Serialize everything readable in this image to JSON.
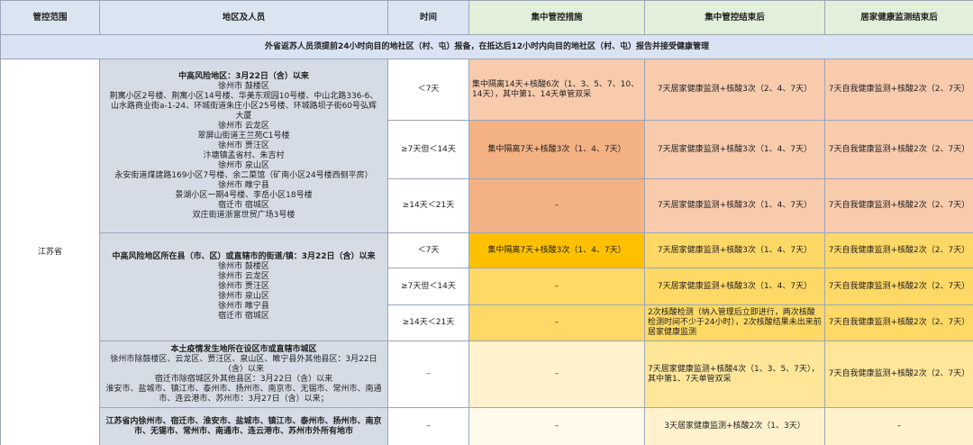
{
  "header": [
    "管控范围",
    "地区及人员",
    "时间",
    "集中管控措施",
    "集中管控结束后",
    "居家健康监测结束后"
  ],
  "notice": "外省返苏人员须提前24小时向目的地社区（村、屯）报备，在抵达后12小时内向目的地社区（村、屯）报告并接受健康管理",
  "region": "江苏省",
  "groups": [
    {
      "area": [
        "中高风险地区：3月22日（含）以来",
        "徐州市 鼓楼区",
        "荆寓小区2号楼、荆寓小区14号楼、华美东观园10号楼、中山北路336-6、",
        "山水路商业街a-1-24、环城街道朱庄小区25号楼、环城路坝子街60号弘辉",
        "大厦",
        "徐州市 云龙区",
        "翠屏山街道王兰苑C1号楼",
        "徐州市 贾汪区",
        "汴塘镇孟省村、朱吉村",
        "徐州市 泉山区",
        "永安街道煤建路169小区7号楼、余二菜馆（矿南小区24号楼西侧平房）",
        "徐州市 睢宁县",
        "景湖小区一期4号楼、李岳小区18号楼",
        "宿迁市 宿城区",
        "双庄街道浙富世贸广场3号楼"
      ],
      "rows": [
        {
          "time": "＜7天",
          "measure": "集中隔离14天+核酸6次（1、3、5、7、10、14天），其中第1、14天单管双采",
          "after": "7天居家健康监测+核酸3次（2、4、7天）",
          "home": "7天自我健康监测+核酸2次（2、7天）"
        },
        {
          "time": "≥7天但＜14天",
          "measure": "集中隔离7天+核酸3次（1、4、7天）",
          "after": "7天居家健康监测+核酸3次（1、4、7天）",
          "home": "7天自我健康监测+核酸2次（2、7天）"
        },
        {
          "time": "≥14天＜21天",
          "measure": "–",
          "after": "7天居家健康监测+核酸3次（1、4、7天）",
          "home": "7天自我健康监测+核酸2次（2、7天）"
        }
      ]
    },
    {
      "area": [
        "中高风险地区所在县（市、区）或直辖市的街道/镇：3月22日（含）以来",
        "徐州市 鼓楼区",
        "徐州市 云龙区",
        "徐州市 贾汪区",
        "徐州市 泉山区",
        "徐州市 睢宁县",
        "宿迁市 宿城区"
      ],
      "rows": [
        {
          "time": "＜7天",
          "measure": "集中隔离7天+核酸3次（1、4、7天）",
          "after": "7天居家健康监测+核酸3次（1、4、7天）",
          "home": "7天自我健康监测+核酸2次（2、7天）"
        },
        {
          "time": "≥7天但＜14天",
          "measure": "–",
          "after": "7天居家健康监测+核酸3次（1、4、7天）",
          "home": "7天自我健康监测+核酸2次（2、7天）"
        },
        {
          "time": "≥14天＜21天",
          "measure": "–",
          "after": "2次核酸检测（纳入管理后立即进行，两次核酸检测时间不少于24小时），2次核酸结果未出来前居家健康监测",
          "home": "7天自我健康监测+核酸2次（2、7天）"
        }
      ]
    },
    {
      "area": [
        "本土疫情发生地所在设区市或直辖市城区",
        "徐州市除鼓楼区、云龙区、贾汪区、泉山区、睢宁县外其他县区：3月22日（含）以来",
        "宿迁市除宿城区外其他县区：3月22日（含）以来",
        "淮安市、盐城市、镇江市、泰州市、扬州市、南京市、无锡市、常州市、南通市、连云港市、苏州市：3月27日（含）以来；"
      ],
      "rows": [
        {
          "time": "–",
          "measure": "–",
          "after": "7天居家健康监测+核酸4次（1、3、5、7天），其中第1、7天单管双采",
          "home": "7天自我健康监测+核酸2次（2、7天）"
        }
      ]
    },
    {
      "area": [
        "江苏省内徐州市、宿迁市、淮安市、盐城市、镇江市、泰州市、扬州市、南京市、无锡市、常州市、南通市、连云港市、苏州市外所有地市"
      ],
      "rows": [
        {
          "time": "–",
          "measure": "–",
          "after": "3天居家健康监测+核酸2次（1、3天）",
          "home": "–"
        }
      ]
    }
  ]
}
